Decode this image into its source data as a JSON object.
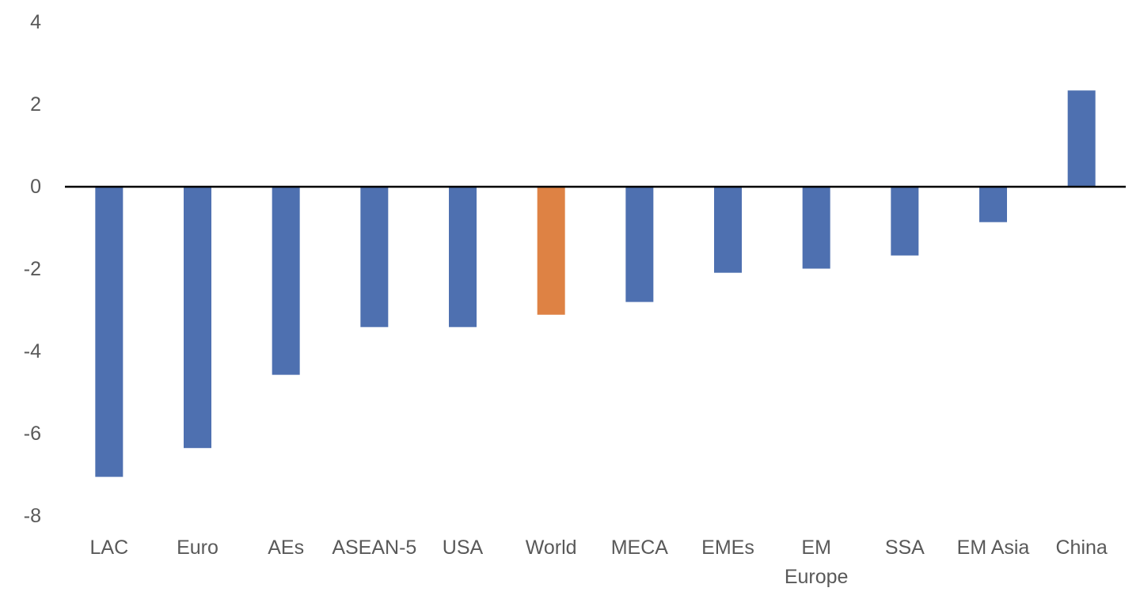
{
  "chart_data": {
    "type": "bar",
    "title": "",
    "xlabel": "",
    "ylabel": "",
    "categories": [
      "LAC",
      "Euro",
      "AEs",
      "ASEAN-5",
      "USA",
      "World",
      "MECA",
      "EMEs",
      "EM Europe",
      "SSA",
      "EM Asia",
      "China"
    ],
    "category_lines": [
      [
        "LAC"
      ],
      [
        "Euro"
      ],
      [
        "AEs"
      ],
      [
        "ASEAN-5"
      ],
      [
        "USA"
      ],
      [
        "World"
      ],
      [
        "MECA"
      ],
      [
        "EMEs"
      ],
      [
        "EM",
        "Europe"
      ],
      [
        "SSA"
      ],
      [
        "EM Asia"
      ],
      [
        "China"
      ]
    ],
    "values": [
      -7.05,
      -6.35,
      -4.57,
      -3.41,
      -3.41,
      -3.11,
      -2.8,
      -2.09,
      -1.99,
      -1.67,
      -0.86,
      2.34
    ],
    "highlight": "World",
    "ylim": [
      -8,
      4
    ],
    "yticks": [
      4,
      2,
      0,
      -2,
      -4,
      -6,
      -8
    ],
    "grid": false,
    "legend": "none",
    "colors": {
      "bar": "#4e70b0",
      "highlight": "#de8244",
      "zero_line": "#000000"
    }
  }
}
